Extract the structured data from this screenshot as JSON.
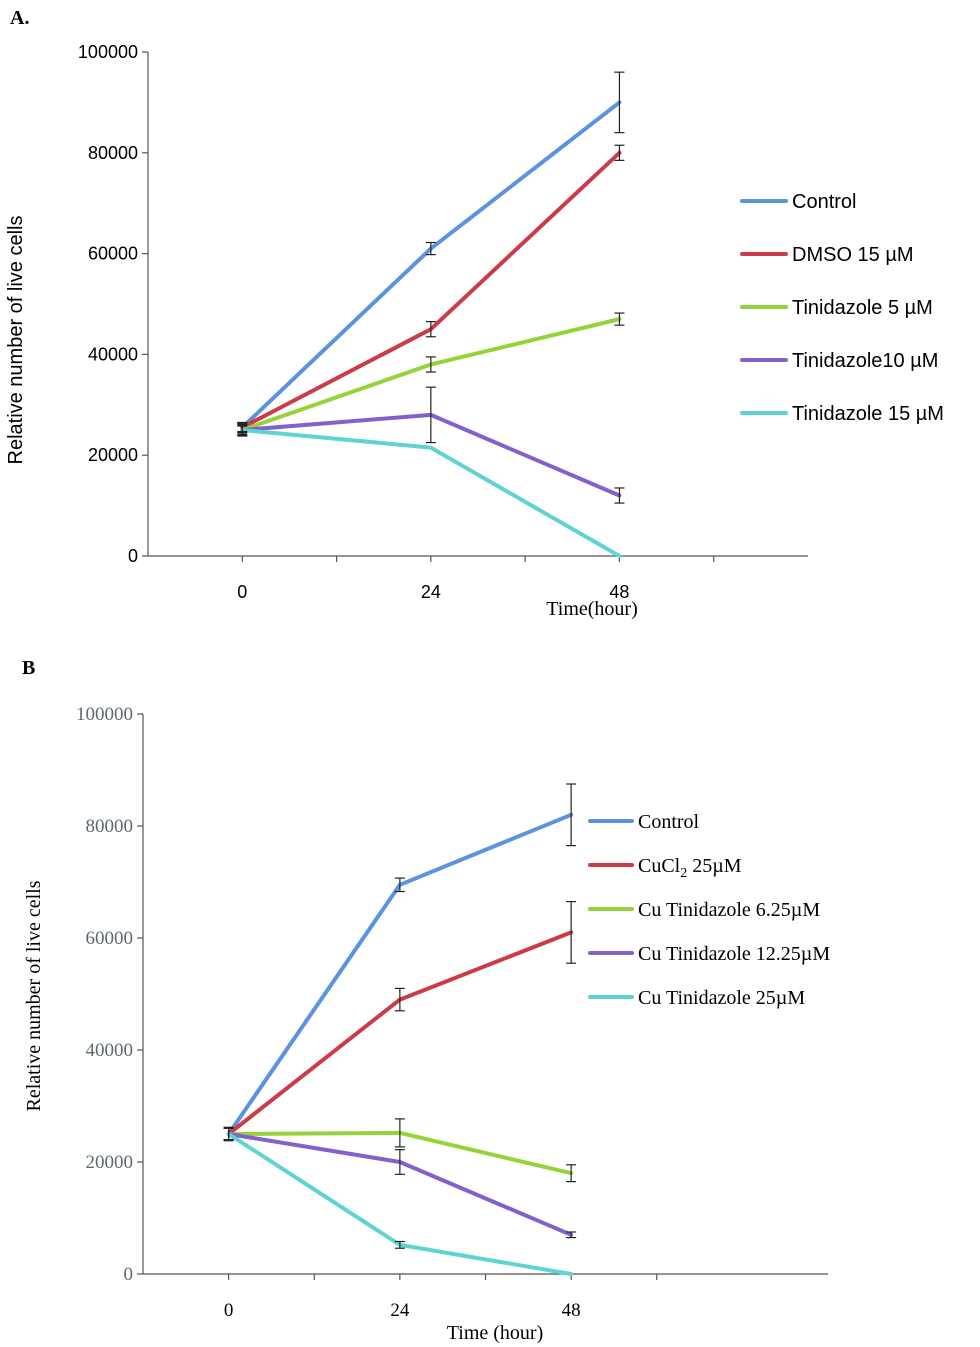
{
  "chart_data": [
    {
      "type": "line",
      "panel_label": "A.",
      "title": "",
      "xlabel": "Time(hour)",
      "ylabel": "Relative number of live cells",
      "x": [
        0,
        24,
        48
      ],
      "x_tick_labels": [
        "0",
        "24",
        "48"
      ],
      "xlim": [
        -12,
        72
      ],
      "ylim": [
        0,
        100000
      ],
      "y_ticks": [
        0,
        20000,
        40000,
        60000,
        80000,
        100000
      ],
      "y_tick_labels": [
        "0",
        "20000",
        "40000",
        "60000",
        "80000",
        "100000"
      ],
      "grid": false,
      "legend_position": "right",
      "series": [
        {
          "name": "Control",
          "legend_label": "Control",
          "color": "#5b93e0",
          "values": [
            25500,
            61000,
            90000
          ],
          "errors": [
            1000,
            1200,
            6000
          ]
        },
        {
          "name": "DMSO 15 µM",
          "legend_label": "DMSO 15 µM",
          "color": "#cc3b48",
          "values": [
            25500,
            45000,
            80000
          ],
          "errors": [
            800,
            1500,
            1500
          ]
        },
        {
          "name": "Tinidazole 5 µM",
          "legend_label": "Tinidazole 5 µM",
          "color": "#94d43a",
          "values": [
            25000,
            38000,
            47000
          ],
          "errors": [
            800,
            1500,
            1200
          ]
        },
        {
          "name": "Tinidazole10 µM",
          "legend_label": "Tinidazole10 µM",
          "color": "#8460cc",
          "values": [
            25000,
            28000,
            12000
          ],
          "errors": [
            1000,
            5500,
            1500
          ]
        },
        {
          "name": "Tinidazole 15 µM",
          "legend_label": "Tinidazole 15 µM",
          "color": "#5fd3d3",
          "values": [
            25000,
            21500,
            0
          ],
          "errors": [
            1200,
            0,
            0
          ]
        }
      ]
    },
    {
      "type": "line",
      "panel_label": "B",
      "title": "",
      "xlabel": "Time  (hour)",
      "ylabel": "Relative number of live cells",
      "x": [
        0,
        24,
        48
      ],
      "x_tick_labels": [
        "0",
        "24",
        "48"
      ],
      "xlim": [
        -12,
        84
      ],
      "ylim": [
        0,
        100000
      ],
      "y_ticks": [
        0,
        20000,
        40000,
        60000,
        80000,
        100000
      ],
      "y_tick_labels": [
        "0",
        "20000",
        "40000",
        "60000",
        "80000",
        "100000"
      ],
      "grid": false,
      "legend_position": "right",
      "series": [
        {
          "name": "Control",
          "legend_label": "Control",
          "color": "#5b93e0",
          "values": [
            25000,
            69500,
            82000
          ],
          "errors": [
            1200,
            1200,
            5500
          ]
        },
        {
          "name": "CuCl2 25µM",
          "legend_label": "CuCl",
          "legend_sub": "2",
          "legend_suffix": " 25µM",
          "color": "#cc3b48",
          "values": [
            25000,
            49000,
            61000
          ],
          "errors": [
            1000,
            2000,
            5500
          ]
        },
        {
          "name": "Cu Tinidazole 6.25µM",
          "legend_label": "Cu Tinidazole 6.25µM",
          "color": "#94d43a",
          "values": [
            25000,
            25200,
            18000
          ],
          "errors": [
            1000,
            2500,
            1500
          ]
        },
        {
          "name": "Cu Tinidazole 12.25µM",
          "legend_label": "Cu Tinidazole 12.25µM",
          "color": "#8460cc",
          "values": [
            25000,
            20000,
            7000
          ],
          "errors": [
            1000,
            2200,
            500
          ]
        },
        {
          "name": "Cu Tinidazole 25µM",
          "legend_label": "Cu Tinidazole 25µM",
          "color": "#5fd3d3",
          "values": [
            25000,
            5200,
            0
          ],
          "errors": [
            1000,
            600,
            0
          ]
        }
      ]
    }
  ]
}
